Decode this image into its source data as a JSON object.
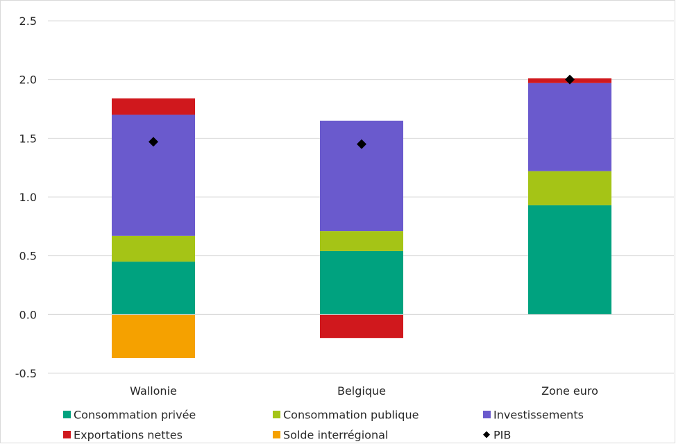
{
  "chart_data": {
    "type": "bar",
    "stacked": true,
    "title": "",
    "xlabel": "",
    "ylabel": "",
    "categories": [
      "Wallonie",
      "Belgique",
      "Zone euro"
    ],
    "ylim": [
      -0.5,
      2.5
    ],
    "yticks": [
      "-0.5",
      "0.0",
      "0.5",
      "1.0",
      "1.5",
      "2.0",
      "2.5"
    ],
    "grid": true,
    "legend_position": "bottom",
    "series": [
      {
        "name": "Consommation privée",
        "color": "#00a27f",
        "values": [
          0.45,
          0.54,
          0.93
        ]
      },
      {
        "name": "Consommation publique",
        "color": "#a5c416",
        "values": [
          0.22,
          0.17,
          0.29
        ]
      },
      {
        "name": "Investissements",
        "color": "#6a5acd",
        "values": [
          1.03,
          0.94,
          0.75
        ]
      },
      {
        "name": "Exportations nettes",
        "color": "#d0181d",
        "values": [
          0.14,
          -0.2,
          0.04
        ]
      },
      {
        "name": "Solde interrégional",
        "color": "#f5a100",
        "values": [
          -0.37,
          0,
          0
        ]
      }
    ],
    "markers": {
      "name": "PIB",
      "color": "#000000",
      "shape": "diamond",
      "values": [
        1.47,
        1.45,
        2.0
      ]
    }
  }
}
